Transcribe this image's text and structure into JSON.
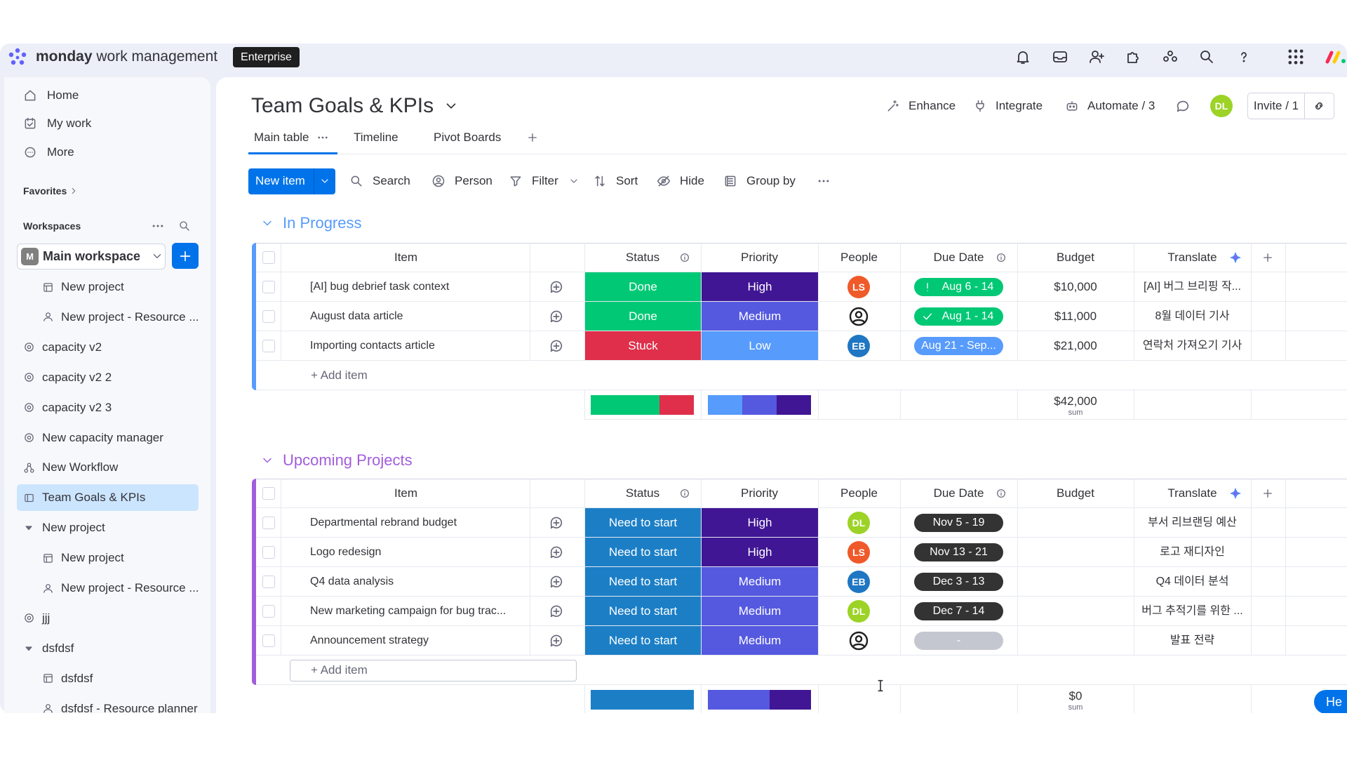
{
  "topbar": {
    "brand": "monday",
    "product": "work management",
    "plan": "Enterprise"
  },
  "sidebar": {
    "nav": [
      "Home",
      "My work",
      "More"
    ],
    "favorites": "Favorites",
    "workspaces": "Workspaces",
    "workspace_initial": "M",
    "workspace": "Main workspace",
    "items": [
      {
        "label": "New project",
        "level": 1,
        "icon": "board"
      },
      {
        "label": "New project - Resource ...",
        "level": 1,
        "icon": "person"
      },
      {
        "label": "capacity v2",
        "level": 0,
        "icon": "capacity"
      },
      {
        "label": "capacity v2 2",
        "level": 0,
        "icon": "capacity"
      },
      {
        "label": "capacity v2 3",
        "level": 0,
        "icon": "capacity"
      },
      {
        "label": "New capacity manager",
        "level": 0,
        "icon": "capacity"
      },
      {
        "label": "New Workflow",
        "level": 0,
        "icon": "workflow"
      },
      {
        "label": "Team Goals & KPIs",
        "level": 0,
        "icon": "table",
        "selected": true
      },
      {
        "label": "New project",
        "level": 0,
        "icon": "folder"
      },
      {
        "label": "New project",
        "level": 1,
        "icon": "board"
      },
      {
        "label": "New project - Resource ...",
        "level": 1,
        "icon": "person"
      },
      {
        "label": "jjj",
        "level": 0,
        "icon": "capacity"
      },
      {
        "label": "dsfdsf",
        "level": 0,
        "icon": "folder"
      },
      {
        "label": "dsfdsf",
        "level": 1,
        "icon": "board"
      },
      {
        "label": "dsfdsf - Resource planner",
        "level": 1,
        "icon": "person"
      }
    ]
  },
  "board": {
    "title": "Team Goals & KPIs",
    "actions": [
      "Enhance",
      "Integrate",
      "Automate / 3"
    ],
    "avatar": "DL",
    "invite": "Invite / 1",
    "tabs": [
      "Main table",
      "Timeline",
      "Pivot Boards"
    ],
    "new_item": "New item",
    "toolbar": [
      "Search",
      "Person",
      "Filter",
      "Sort",
      "Hide",
      "Group by"
    ],
    "columns": [
      "Item",
      "Status",
      "Priority",
      "People",
      "Due Date",
      "Budget",
      "Translate"
    ],
    "add_item": "+ Add item",
    "status_colors": {
      "Done": "#00c875",
      "Stuck": "#df2f4a",
      "Need to start": "#1c7fc6"
    },
    "priority_colors": {
      "Low": "#579bfc",
      "Medium": "#5559df",
      "High": "#401694"
    },
    "people_colors": {
      "LS": "#f0592a",
      "EB": "#1f76c2",
      "DL": "#9cd326"
    },
    "groups": [
      {
        "name": "In Progress",
        "color": "#579bfc",
        "sum": "$42,000",
        "sum_label": "sum",
        "rows": [
          {
            "item": "[AI] bug debrief task context",
            "status": "Done",
            "priority": "High",
            "people": "LS",
            "due": "Aug 6 - 14",
            "due_color": "#00c875",
            "due_icon": "alert",
            "budget": "$10,000",
            "translate": "[AI] 버그 브리핑 작..."
          },
          {
            "item": "August data article",
            "status": "Done",
            "priority": "Medium",
            "people": null,
            "due": "Aug 1 - 14",
            "due_color": "#00c875",
            "due_icon": "check",
            "budget": "$11,000",
            "translate": "8월 데이터 기사"
          },
          {
            "item": "Importing contacts article",
            "status": "Stuck",
            "priority": "Low",
            "people": "EB",
            "due": "Aug 21 - Sep...",
            "due_color": "#579bfc",
            "budget": "$21,000",
            "translate": "연락처 가져오기 기사"
          }
        ]
      },
      {
        "name": "Upcoming Projects",
        "color": "#a25ddc",
        "sum": "$0",
        "sum_label": "sum",
        "rows": [
          {
            "item": "Departmental rebrand budget",
            "status": "Need to start",
            "priority": "High",
            "people": "DL",
            "due": "Nov 5 - 19",
            "due_color": "#333333",
            "budget": null,
            "translate": "부서 리브랜딩 예산"
          },
          {
            "item": "Logo redesign",
            "status": "Need to start",
            "priority": "High",
            "people": "LS",
            "due": "Nov 13 - 21",
            "due_color": "#333333",
            "budget": null,
            "translate": "로고 재디자인"
          },
          {
            "item": "Q4 data analysis",
            "status": "Need to start",
            "priority": "Medium",
            "people": "EB",
            "due": "Dec 3 - 13",
            "due_color": "#333333",
            "budget": null,
            "translate": "Q4 데이터 분석"
          },
          {
            "item": "New marketing campaign for bug trac...",
            "status": "Need to start",
            "priority": "Medium",
            "people": "DL",
            "due": "Dec 7 - 14",
            "due_color": "#333333",
            "budget": null,
            "translate": "버그 추적기를 위한 ..."
          },
          {
            "item": "Announcement strategy",
            "status": "Need to start",
            "priority": "Medium",
            "people": null,
            "due": "-",
            "due_color": "#c5c7d0",
            "budget": null,
            "translate": "발표 전략"
          }
        ]
      }
    ]
  },
  "help": "He"
}
